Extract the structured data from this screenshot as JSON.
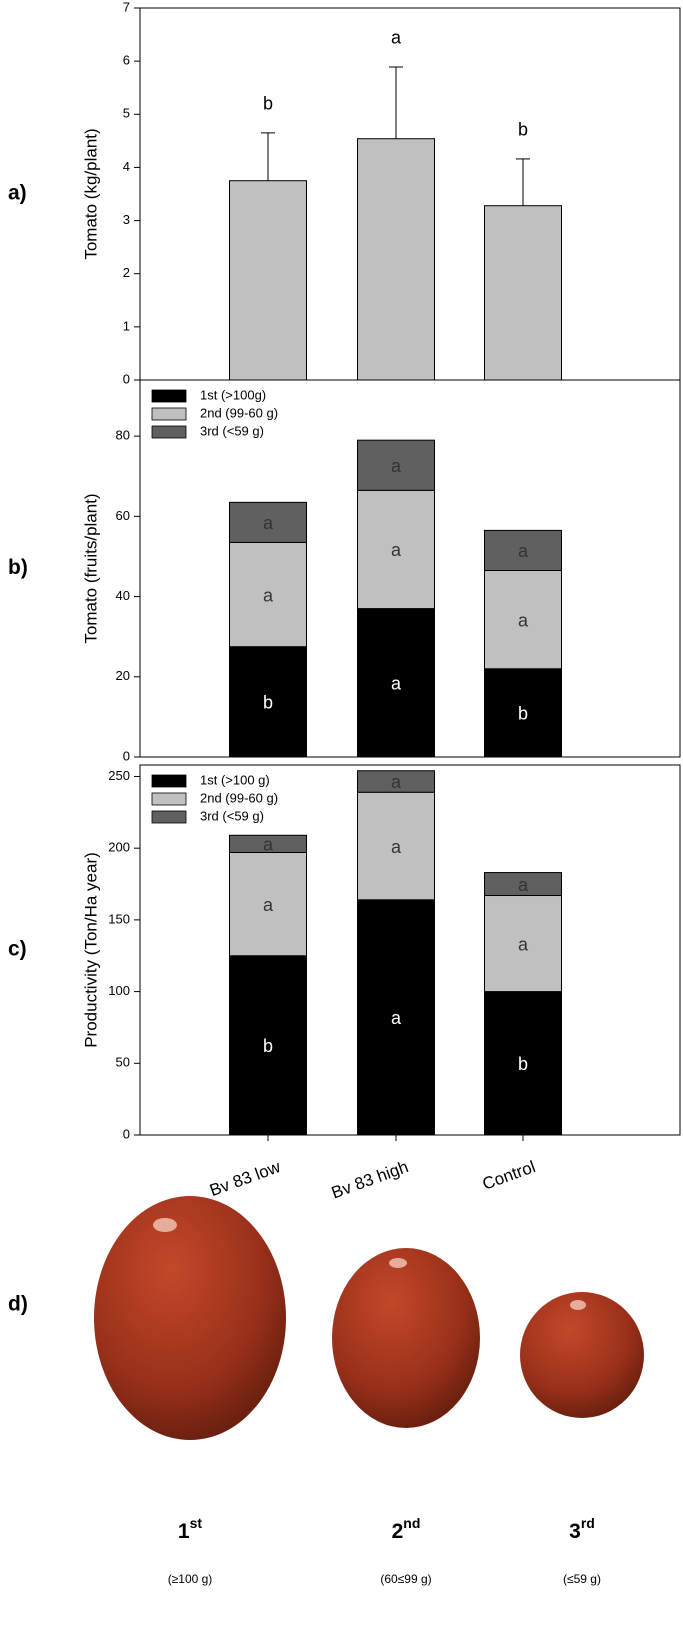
{
  "chart_data": [
    {
      "type": "bar",
      "panel_label": "a)",
      "y_label": "Tomato (kg/plant)",
      "values": [
        3.75,
        4.54,
        3.28
      ],
      "errors": [
        0.9,
        1.35,
        0.88
      ],
      "letters": [
        "b",
        "a",
        "b"
      ],
      "color": "#c0c0c0",
      "ylim": [
        0,
        7
      ],
      "yticks": [
        0,
        1,
        2,
        3,
        4,
        5,
        6,
        7
      ]
    },
    {
      "type": "stacked_bar",
      "panel_label": "b)",
      "y_label": "Tomato (fruits/plant)",
      "series": [
        {
          "name": "1st (>100g)",
          "color": "#000000",
          "values": [
            27.5,
            37,
            22
          ],
          "letters": [
            "b",
            "a",
            "b"
          ]
        },
        {
          "name": "2nd (99-60 g)",
          "color": "#c0c0c0",
          "values": [
            26,
            29.5,
            24.5
          ],
          "letters": [
            "a",
            "a",
            "a"
          ]
        },
        {
          "name": "3rd (<59 g)",
          "color": "#606060",
          "values": [
            10,
            12.5,
            10
          ],
          "letters": [
            "a",
            "a",
            "a"
          ]
        }
      ],
      "ylim": [
        0,
        94
      ],
      "yticks": [
        0,
        20,
        40,
        60,
        80
      ]
    },
    {
      "type": "stacked_bar",
      "panel_label": "c)",
      "y_label": "Productivity (Ton/Ha year)",
      "categories": [
        "Bv 83 low",
        "Bv 83 high",
        "Control"
      ],
      "series": [
        {
          "name": "1st (>100 g)",
          "color": "#000000",
          "values": [
            125,
            164,
            100
          ],
          "letters": [
            "b",
            "a",
            "b"
          ]
        },
        {
          "name": "2nd (99-60 g)",
          "color": "#c0c0c0",
          "values": [
            72,
            75,
            67
          ],
          "letters": [
            "a",
            "a",
            "a"
          ]
        },
        {
          "name": "3rd (<59 g)",
          "color": "#606060",
          "values": [
            12,
            15,
            16
          ],
          "letters": [
            "a",
            "a",
            "a"
          ]
        }
      ],
      "ylim": [
        0,
        258
      ],
      "yticks": [
        0,
        50,
        100,
        150,
        200,
        250
      ]
    }
  ],
  "photo": {
    "panel_label": "d)",
    "items": [
      {
        "number": "1",
        "suffix": "st",
        "range": "(≥100 g)"
      },
      {
        "number": "2",
        "suffix": "nd",
        "range": "(60≤99 g)"
      },
      {
        "number": "3",
        "suffix": "rd",
        "range": "(≤59 g)"
      }
    ]
  }
}
